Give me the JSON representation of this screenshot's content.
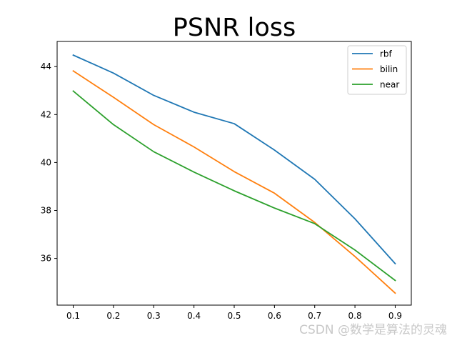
{
  "chart_data": {
    "type": "line",
    "title": "PSNR loss",
    "xlabel": "",
    "ylabel": "",
    "x": [
      0.1,
      0.2,
      0.3,
      0.4,
      0.5,
      0.6,
      0.7,
      0.8,
      0.9
    ],
    "x_tick_labels": [
      "0.1",
      "0.2",
      "0.3",
      "0.4",
      "0.5",
      "0.6",
      "0.7",
      "0.8",
      "0.9"
    ],
    "y_ticks": [
      36,
      38,
      40,
      42,
      44
    ],
    "y_tick_labels": [
      "36",
      "38",
      "40",
      "42",
      "44"
    ],
    "xlim": [
      0.06,
      0.94
    ],
    "ylim": [
      34.05,
      45.05
    ],
    "grid": false,
    "legend_position": "top-right",
    "series": [
      {
        "name": "rbf",
        "color": "#1f77b4",
        "values": [
          44.48,
          43.73,
          42.8,
          42.1,
          41.62,
          40.52,
          39.3,
          37.65,
          35.78
        ]
      },
      {
        "name": "bilin",
        "color": "#ff7f0e",
        "values": [
          43.82,
          42.72,
          41.58,
          40.65,
          39.62,
          38.72,
          37.5,
          36.08,
          34.55
        ]
      },
      {
        "name": "near",
        "color": "#2ca02c",
        "values": [
          42.98,
          41.58,
          40.45,
          39.6,
          38.82,
          38.1,
          37.45,
          36.35,
          35.08
        ]
      }
    ]
  },
  "watermark": "CSDN @数学是算法的灵魂"
}
